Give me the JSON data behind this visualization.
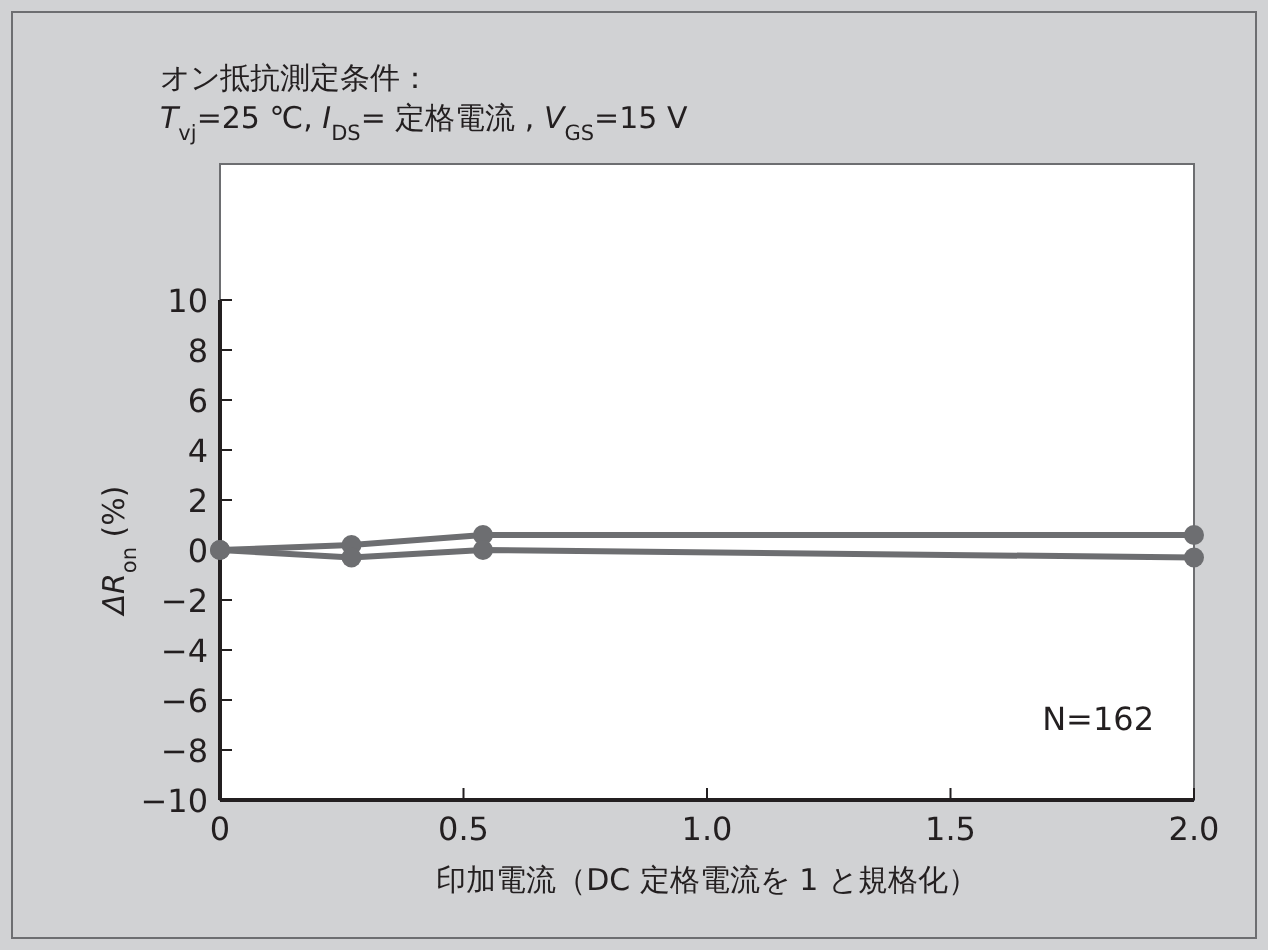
{
  "chart_data": {
    "type": "line",
    "title": "オン抵抗測定条件：",
    "subtitle": "T$_{vj}$=25 ℃, I$_{DS}$= 定格電流 , V$_{GS}$=15 V",
    "xlabel": "印加電流（DC 定格電流を 1 と規格化）",
    "ylabel": "ΔR$_{on}$ (%)",
    "x": [
      0,
      0.27,
      0.54,
      2.0
    ],
    "series": [
      {
        "color": "#6d6e71",
        "values": [
          0,
          0.2,
          0.6,
          0.6
        ]
      },
      {
        "color": "#6d6e71",
        "values": [
          0,
          -0.3,
          0.0,
          -0.3
        ]
      }
    ],
    "xlim": [
      0,
      2.0
    ],
    "xticks": [
      0,
      0.5,
      "1.0",
      1.5,
      "2.0"
    ],
    "ylim": [
      -10,
      10
    ],
    "yticks": [
      {
        "value": -10,
        "label": "−10"
      },
      {
        "value": -8,
        "label": "−8"
      },
      {
        "value": -6,
        "label": "−6"
      },
      {
        "value": -4,
        "label": "−4"
      },
      {
        "value": -2,
        "label": "−2"
      },
      0,
      2,
      4,
      6,
      8,
      10
    ],
    "marker": "circle",
    "line_style": "solid",
    "grid": false,
    "annotations": [
      "N=162"
    ]
  }
}
